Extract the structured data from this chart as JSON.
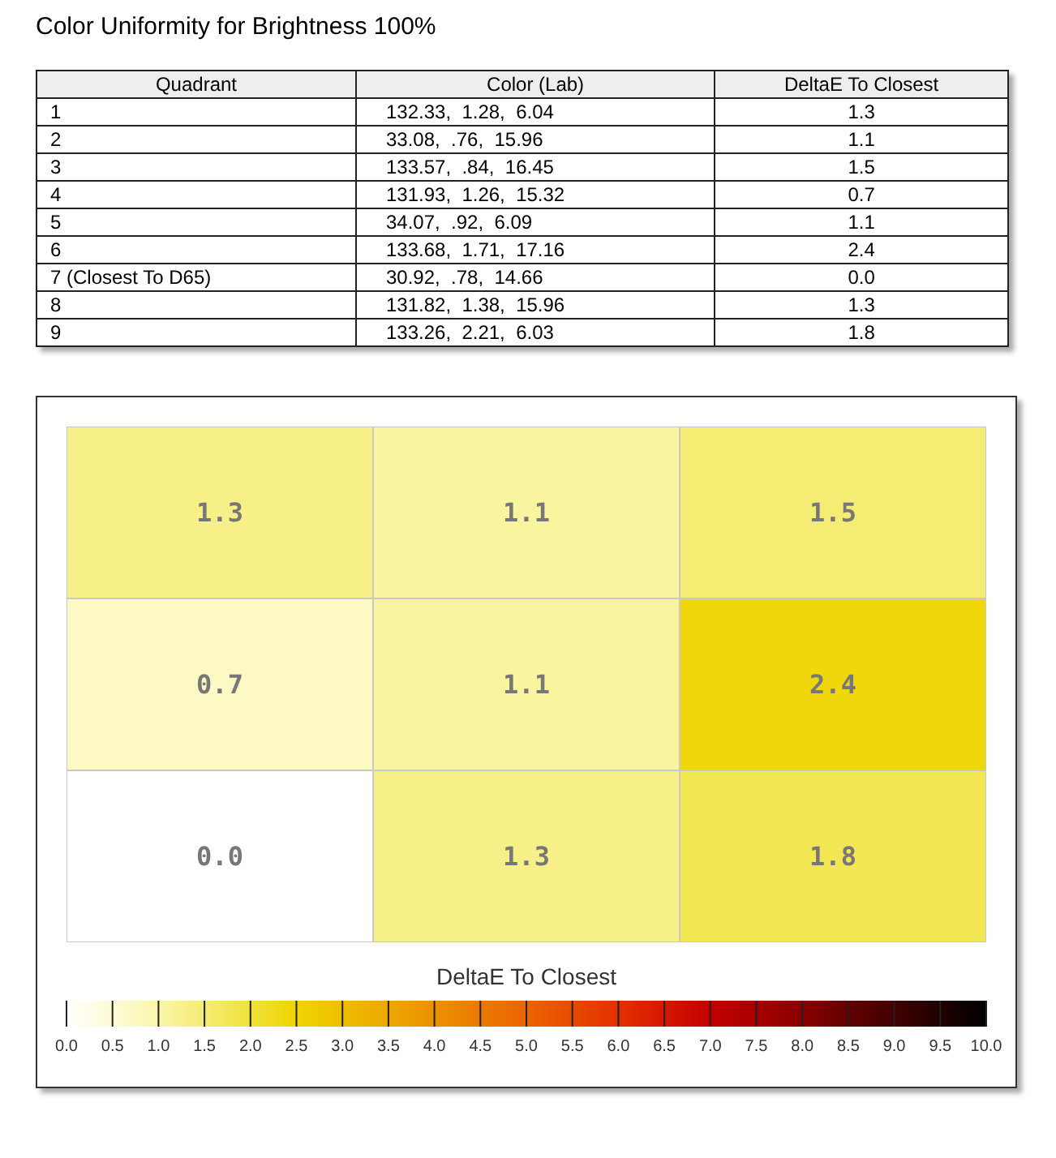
{
  "chart_data": [
    {
      "type": "other",
      "title": "Color Uniformity for Brightness 100%",
      "ylabel": "Quadrant",
      "categories": [
        "Color (Lab)",
        "DeltaE To Closest"
      ],
      "y_categories": [
        "1",
        "2",
        "3",
        "4",
        "5",
        "6",
        "7 (Closest To D65)",
        "8",
        "9"
      ],
      "cell_labels": [
        [
          "132.33,  1.28,  6.04",
          "1.3"
        ],
        [
          "33.08,  .76,  15.96",
          "1.1"
        ],
        [
          "133.57,  .84,  16.45",
          "1.5"
        ],
        [
          "131.93,  1.26,  15.32",
          "0.7"
        ],
        [
          "34.07,  .92,  6.09",
          "1.1"
        ],
        [
          "133.68,  1.71,  17.16",
          "2.4"
        ],
        [
          "30.92,  .78,  14.66",
          "0.0"
        ],
        [
          "131.82,  1.38,  15.96",
          "1.3"
        ],
        [
          "133.26,  2.21,  6.03",
          "1.8"
        ]
      ]
    },
    {
      "type": "heatmap",
      "categories": [
        null,
        null,
        null
      ],
      "y_categories": [
        null,
        null,
        null
      ],
      "cells": [
        [
          1.3,
          1.1,
          1.5
        ],
        [
          0.7,
          1.1,
          2.4
        ],
        [
          0.0,
          1.3,
          1.8
        ]
      ],
      "cell_labels": [
        [
          "1.3",
          "1.1",
          "1.5"
        ],
        [
          "0.7",
          "1.1",
          "2.4"
        ],
        [
          "0.0",
          "1.3",
          "1.8"
        ]
      ],
      "clabel": "DeltaE To Closest",
      "clim": [
        0,
        10
      ],
      "cticks": [
        {
          "value": 0,
          "label": "0.0"
        },
        {
          "value": 0.5,
          "label": "0.5"
        },
        {
          "value": 1,
          "label": "1.0"
        },
        {
          "value": 1.5,
          "label": "1.5"
        },
        {
          "value": 2,
          "label": "2.0"
        },
        {
          "value": 2.5,
          "label": "2.5"
        },
        {
          "value": 3,
          "label": "3.0"
        },
        {
          "value": 3.5,
          "label": "3.5"
        },
        {
          "value": 4,
          "label": "4.0"
        },
        {
          "value": 4.5,
          "label": "4.5"
        },
        {
          "value": 5,
          "label": "5.0"
        },
        {
          "value": 5.5,
          "label": "5.5"
        },
        {
          "value": 6,
          "label": "6.0"
        },
        {
          "value": 6.5,
          "label": "6.5"
        },
        {
          "value": 7,
          "label": "7.0"
        },
        {
          "value": 7.5,
          "label": "7.5"
        },
        {
          "value": 8,
          "label": "8.0"
        },
        {
          "value": 8.5,
          "label": "8.5"
        },
        {
          "value": 9,
          "label": "9.0"
        },
        {
          "value": 9.5,
          "label": "9.5"
        },
        {
          "value": 10,
          "label": "10.0"
        }
      ]
    }
  ]
}
